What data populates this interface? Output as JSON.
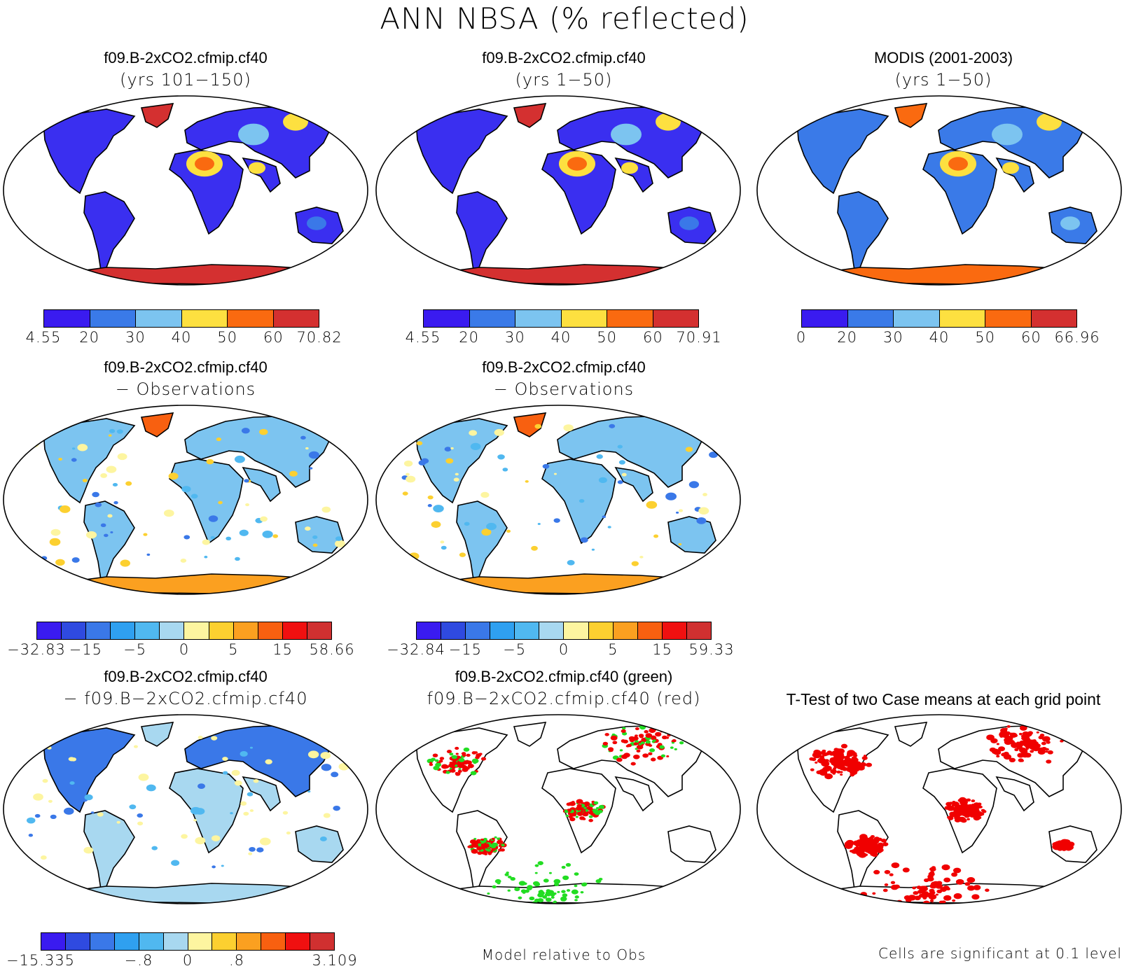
{
  "figure": {
    "title": "ANN NBSA (% reflected)"
  },
  "colors": {
    "ramp6": [
      "#3a1bf0",
      "#3a7ae8",
      "#7cc4f0",
      "#fde040",
      "#fa6a10",
      "#d43030"
    ],
    "ramp12": [
      "#3a1bf0",
      "#2f4ae0",
      "#3a78e8",
      "#2fa0f0",
      "#50b8f0",
      "#a8d8f0",
      "#fdf5a0",
      "#fcd030",
      "#fba020",
      "#f86010",
      "#f01010",
      "#d03030"
    ],
    "significant": "#f00000",
    "green": "#22dd22"
  },
  "panels": [
    {
      "id": "p1",
      "title": "f09.B-2xCO2.cfmip.cf40",
      "subtitle": "(yrs 101−150)",
      "style": "abs",
      "colorbar": {
        "scale": "ramp6",
        "ticks": [
          "4.55",
          "20",
          "30",
          "40",
          "50",
          "60",
          "70.82"
        ]
      }
    },
    {
      "id": "p2",
      "title": "f09.B-2xCO2.cfmip.cf40",
      "subtitle": "(yrs 1−50)",
      "style": "abs",
      "colorbar": {
        "scale": "ramp6",
        "ticks": [
          "4.55",
          "20",
          "30",
          "40",
          "50",
          "60",
          "70.91"
        ]
      }
    },
    {
      "id": "p3",
      "title": "MODIS (2001-2003)",
      "subtitle": "(yrs 1−50)",
      "style": "obs",
      "colorbar": {
        "scale": "ramp6",
        "ticks": [
          "0",
          "20",
          "30",
          "40",
          "50",
          "60",
          "66.96"
        ]
      }
    },
    {
      "id": "p4",
      "title": "f09.B-2xCO2.cfmip.cf40",
      "subtitle": "− Observations",
      "style": "diff",
      "colorbar": {
        "scale": "ramp12",
        "ticks": [
          "−32.83",
          "−15",
          "−5",
          "0",
          "5",
          "15",
          "58.66"
        ]
      }
    },
    {
      "id": "p5",
      "title": "f09.B-2xCO2.cfmip.cf40",
      "subtitle": "− Observations",
      "style": "diff",
      "colorbar": {
        "scale": "ramp12",
        "ticks": [
          "−32.84",
          "−15",
          "−5",
          "0",
          "5",
          "15",
          "59.33"
        ]
      }
    },
    {
      "id": "p7",
      "title": "f09.B-2xCO2.cfmip.cf40",
      "subtitle": "− f09.B−2xCO2.cfmip.cf40",
      "style": "casediff",
      "colorbar": {
        "scale": "ramp12",
        "ticks": [
          "−15.335",
          "−.8",
          "0",
          ".8",
          "3.109"
        ]
      }
    },
    {
      "id": "p8",
      "title": "f09.B-2xCO2.cfmip.cf40 (green)",
      "subtitle": "f09.B−2xCO2.cfmip.cf40 (red)",
      "style": "rank",
      "note": "Model relative to Obs"
    },
    {
      "id": "p9",
      "title": "T-Test of two Case means at each grid point",
      "subtitle": "",
      "style": "ttest",
      "note": "Cells are significant at 0.1 level"
    }
  ]
}
